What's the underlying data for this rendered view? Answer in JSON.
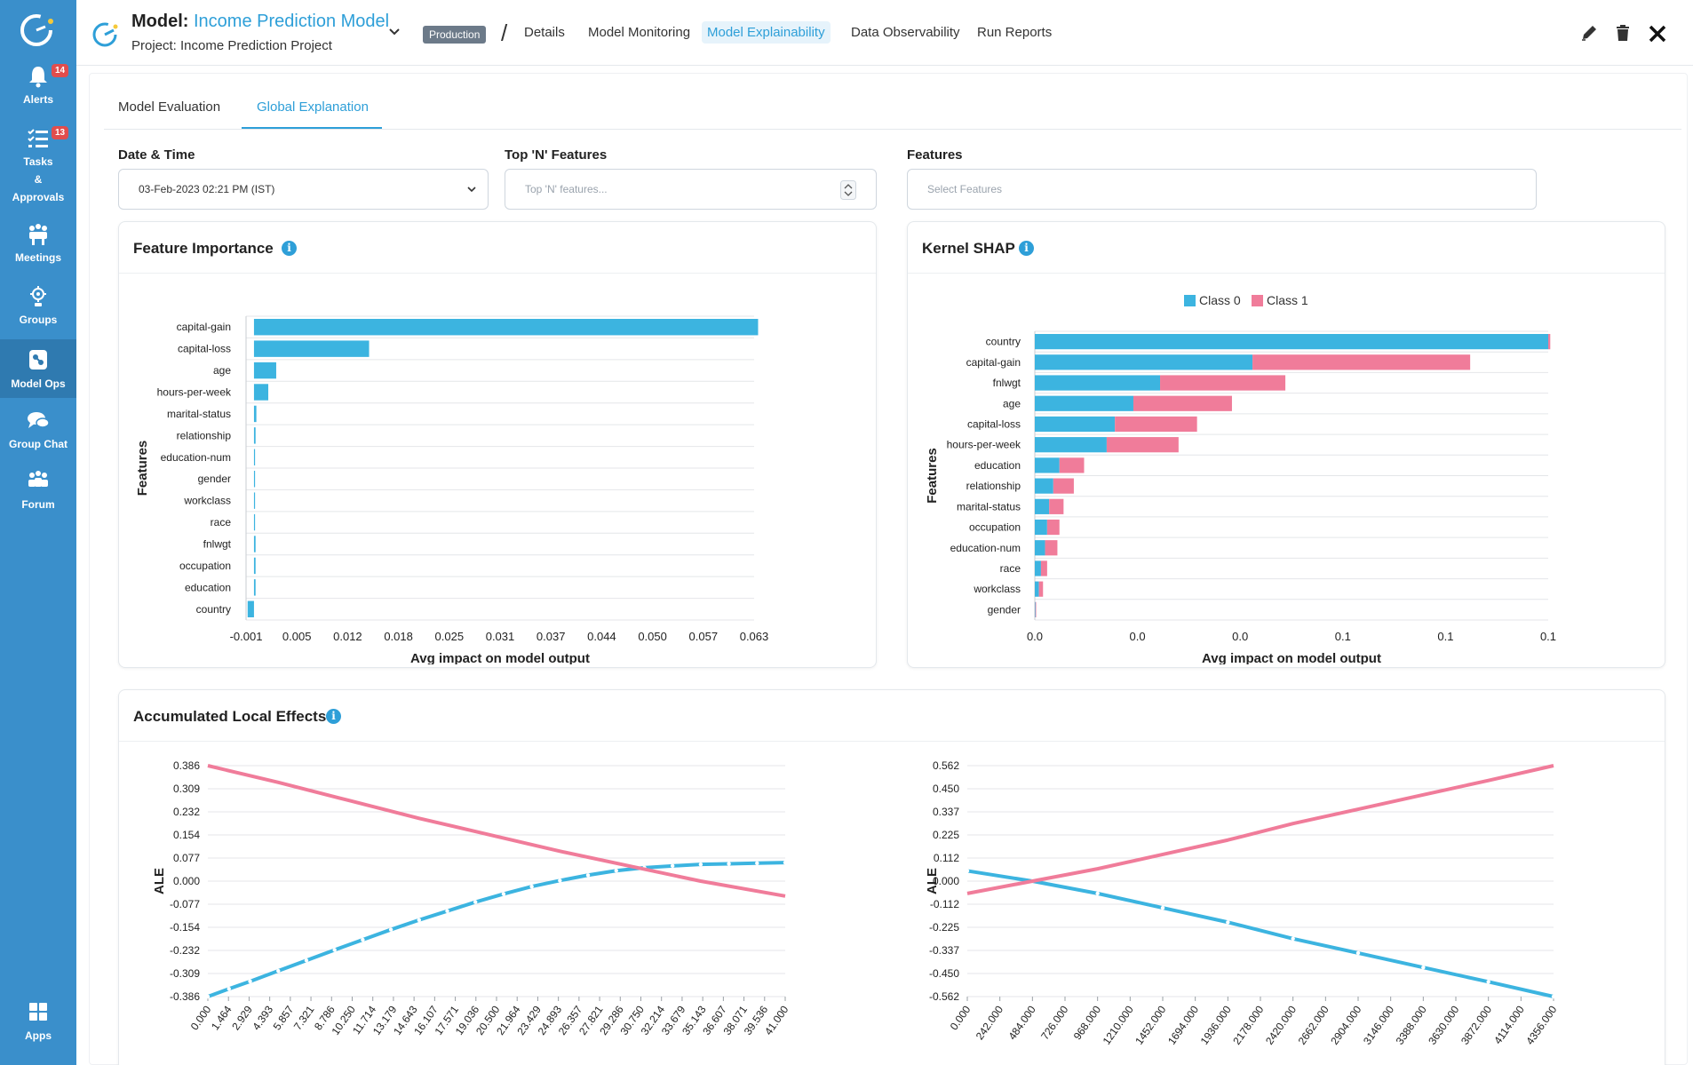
{
  "sidebar": {
    "items": [
      {
        "label": "Alerts",
        "icon": "bell-icon",
        "badge": "14"
      },
      {
        "label": "Tasks\n&\nApprovals",
        "icon": "tasks-icon",
        "badge": "13"
      },
      {
        "label": "Meetings",
        "icon": "meetings-icon"
      },
      {
        "label": "Groups",
        "icon": "groups-icon"
      },
      {
        "label": "Model Ops",
        "icon": "model-ops-icon"
      },
      {
        "label": "Group Chat",
        "icon": "chat-icon"
      },
      {
        "label": "Forum",
        "icon": "forum-icon"
      },
      {
        "label": "Apps",
        "icon": "apps-icon"
      }
    ]
  },
  "header": {
    "model_prefix": "Model:",
    "model_name": "Income Prediction Model",
    "project": "Project: Income Prediction Project",
    "status_badge": "Production",
    "separator": "/",
    "tabs": [
      "Details",
      "Model Monitoring",
      "Model Explainability",
      "Data Observability",
      "Run Reports"
    ],
    "active_tab": "Model Explainability"
  },
  "subtabs": [
    "Model Evaluation",
    "Global Explanation"
  ],
  "filters": {
    "datetime_label": "Date & Time",
    "datetime_value": "03-Feb-2023 02:21 PM (IST)",
    "topn_label": "Top 'N' Features",
    "topn_placeholder": "Top 'N' features...",
    "features_label": "Features",
    "features_placeholder": "Select Features"
  },
  "colors": {
    "accent": "#2e9fd8",
    "class0": "#3cb4e0",
    "class1": "#f07c9a",
    "sidebar": "#3a8fcb"
  },
  "feature_importance": {
    "title": "Feature Importance",
    "chart_data": {
      "type": "bar",
      "orientation": "horizontal",
      "categories": [
        "capital-gain",
        "capital-loss",
        "age",
        "hours-per-week",
        "marital-status",
        "relationship",
        "education-num",
        "gender",
        "workclass",
        "race",
        "fnlwgt",
        "occupation",
        "education",
        "country"
      ],
      "values": [
        0.0635,
        0.0145,
        0.0028,
        0.0018,
        0.0003,
        0.0002,
        0.0001,
        0.0,
        0.0,
        0.0,
        0.0002,
        0.0002,
        0.0002,
        -0.0008
      ],
      "xticks": [
        "-0.001",
        "0.005",
        "0.012",
        "0.018",
        "0.025",
        "0.031",
        "0.037",
        "0.044",
        "0.050",
        "0.057",
        "0.063"
      ],
      "xlim": [
        -0.001,
        0.063
      ],
      "xlabel": "Avg impact on model output",
      "ylabel": "Features"
    }
  },
  "kernel_shap": {
    "title": "Kernel SHAP",
    "chart_data": {
      "type": "bar",
      "orientation": "horizontal",
      "stacked": true,
      "categories": [
        "country",
        "capital-gain",
        "fnlwgt",
        "age",
        "capital-loss",
        "hours-per-week",
        "education",
        "relationship",
        "marital-status",
        "occupation",
        "education-num",
        "race",
        "workclass",
        "gender"
      ],
      "series": [
        {
          "name": "Class 0",
          "values": [
            0.25,
            0.106,
            0.061,
            0.048,
            0.039,
            0.035,
            0.012,
            0.009,
            0.007,
            0.006,
            0.005,
            0.003,
            0.002,
            0.0003
          ]
        },
        {
          "name": "Class 1",
          "values": [
            0.001,
            0.106,
            0.061,
            0.048,
            0.04,
            0.035,
            0.012,
            0.01,
            0.007,
            0.006,
            0.006,
            0.003,
            0.002,
            0.0003
          ]
        }
      ],
      "xticks": [
        "0.0",
        "0.0",
        "0.0",
        "0.1",
        "0.1",
        "0.1"
      ],
      "xlim": [
        0,
        0.25
      ],
      "xlabel": "Avg impact on model output",
      "ylabel": "Features",
      "legend": "top-center"
    }
  },
  "ale": {
    "title": "Accumulated Local Effects",
    "charts": [
      {
        "type": "line",
        "ylabel": "ALE",
        "xticks": [
          "0.000",
          "1.464",
          "2.929",
          "4.393",
          "5.857",
          "7.321",
          "8.786",
          "10.250",
          "11.714",
          "13.179",
          "14.643",
          "16.107",
          "17.571",
          "19.036",
          "20.500",
          "21.964",
          "23.429",
          "24.893",
          "26.357",
          "27.821",
          "29.286",
          "30.750",
          "32.214",
          "33.679",
          "35.143",
          "36.607",
          "38.071",
          "39.536",
          "41.000"
        ],
        "yticks": [
          "0.386",
          "0.309",
          "0.232",
          "0.154",
          "0.077",
          "0.000",
          "-0.077",
          "-0.154",
          "-0.232",
          "-0.309",
          "-0.386"
        ],
        "xlim": [
          0,
          41
        ],
        "ylim": [
          -0.386,
          0.386
        ],
        "series": [
          {
            "name": "Class 0",
            "x": [
              0,
              1.5,
              3,
              5,
              7,
              9,
              11,
              13,
              15,
              17,
              19,
              21,
              23,
              25,
              27,
              29,
              31,
              33,
              35,
              37,
              39,
              41
            ],
            "y": [
              -0.386,
              -0.36,
              -0.335,
              -0.3,
              -0.265,
              -0.23,
              -0.196,
              -0.162,
              -0.13,
              -0.1,
              -0.07,
              -0.043,
              -0.018,
              0.002,
              0.02,
              0.035,
              0.045,
              0.051,
              0.056,
              0.058,
              0.06,
              0.062
            ]
          },
          {
            "name": "Class 1",
            "x": [
              0,
              5,
              10,
              15,
              20,
              25,
              30,
              35,
              41
            ],
            "y": [
              0.386,
              0.33,
              0.27,
              0.21,
              0.155,
              0.1,
              0.05,
              0.0,
              -0.05
            ]
          }
        ]
      },
      {
        "type": "line",
        "ylabel": "ALE",
        "xticks": [
          "0.000",
          "242.000",
          "484.000",
          "726.000",
          "968.000",
          "1210.000",
          "1452.000",
          "1694.000",
          "1936.000",
          "2178.000",
          "2420.000",
          "2662.000",
          "2904.000",
          "3146.000",
          "3388.000",
          "3630.000",
          "3872.000",
          "4114.000",
          "4356.000"
        ],
        "yticks": [
          "0.562",
          "0.450",
          "0.337",
          "0.225",
          "0.112",
          "0.000",
          "-0.112",
          "-0.225",
          "-0.337",
          "-0.450",
          "-0.562"
        ],
        "xlim": [
          0,
          4356
        ],
        "ylim": [
          -0.562,
          0.562
        ],
        "series": [
          {
            "name": "Class 0",
            "x": [
              0,
              484,
              968,
              1452,
              1936,
              2420,
              2904,
              3388,
              3872,
              4356
            ],
            "y": [
              0.05,
              0.0,
              -0.06,
              -0.13,
              -0.2,
              -0.28,
              -0.35,
              -0.42,
              -0.49,
              -0.562
            ]
          },
          {
            "name": "Class 1",
            "x": [
              0,
              484,
              968,
              1452,
              1936,
              2420,
              2904,
              3388,
              3872,
              4356
            ],
            "y": [
              -0.06,
              0.0,
              0.06,
              0.13,
              0.2,
              0.28,
              0.35,
              0.42,
              0.49,
              0.562
            ]
          }
        ]
      }
    ]
  }
}
